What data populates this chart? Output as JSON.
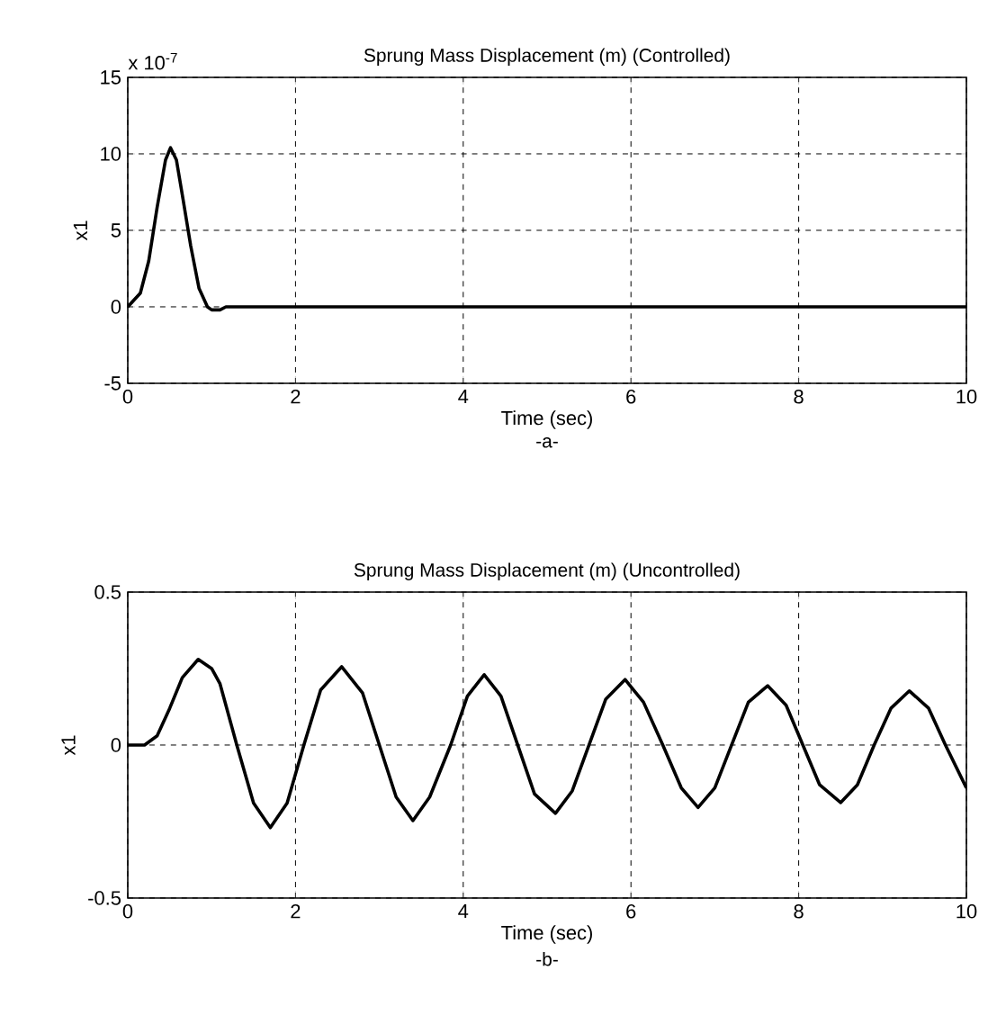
{
  "chart_data": [
    {
      "type": "line",
      "title": "Sprung Mass Displacement (m) (Controlled)",
      "xlabel": "Time (sec)",
      "ylabel": "x1",
      "annotations": [
        "x 10$^{-7}$",
        "-a-"
      ],
      "x": [
        0,
        0.15,
        0.25,
        0.35,
        0.45,
        0.51,
        0.58,
        0.66,
        0.75,
        0.85,
        0.95,
        1.0,
        1.1,
        1.17,
        10
      ],
      "series": [
        {
          "color": "#000000",
          "values": [
            0,
            0.9,
            3,
            6.5,
            9.6,
            10.4,
            9.6,
            7,
            4,
            1.2,
            0,
            -0.2,
            -0.2,
            0,
            0
          ]
        }
      ],
      "xlim": [
        0,
        10
      ],
      "ylim": [
        -5,
        15
      ],
      "xticks": [
        0,
        2,
        4,
        6,
        8,
        10
      ],
      "yticks": [
        -5,
        0,
        5,
        10,
        15
      ],
      "grid": true,
      "marker": "none",
      "line_style": "solid"
    },
    {
      "type": "line",
      "title": "Sprung Mass Displacement (m) (Uncontrolled)",
      "xlabel": "Time (sec)",
      "ylabel": "x1",
      "annotations": [
        "-b-"
      ],
      "x": [
        0,
        0.2,
        0.35,
        0.5,
        0.65,
        0.84,
        1.0,
        1.1,
        1.3,
        1.5,
        1.7,
        1.9,
        2.1,
        2.3,
        2.55,
        2.8,
        3.0,
        3.2,
        3.4,
        3.6,
        3.85,
        4.05,
        4.25,
        4.45,
        4.65,
        4.85,
        5.1,
        5.3,
        5.5,
        5.7,
        5.93,
        6.15,
        6.38,
        6.6,
        6.8,
        7.0,
        7.2,
        7.4,
        7.63,
        7.85,
        8.05,
        8.25,
        8.5,
        8.7,
        8.9,
        9.1,
        9.32,
        9.55,
        9.75,
        10
      ],
      "series": [
        {
          "color": "#000000",
          "values": [
            0,
            0,
            0.03,
            0.12,
            0.22,
            0.28,
            0.25,
            0.2,
            0,
            -0.19,
            -0.27,
            -0.19,
            0,
            0.18,
            0.256,
            0.17,
            0,
            -0.17,
            -0.247,
            -0.17,
            0,
            0.16,
            0.23,
            0.16,
            0,
            -0.16,
            -0.223,
            -0.15,
            0,
            0.15,
            0.214,
            0.14,
            0,
            -0.14,
            -0.204,
            -0.14,
            0,
            0.14,
            0.194,
            0.13,
            0,
            -0.13,
            -0.188,
            -0.13,
            0,
            0.12,
            0.177,
            0.12,
            0,
            -0.14
          ]
        }
      ],
      "xlim": [
        0,
        10
      ],
      "ylim": [
        -0.5,
        0.5
      ],
      "xticks": [
        0,
        2,
        4,
        6,
        8,
        10
      ],
      "yticks": [
        -0.5,
        0,
        0.5
      ],
      "grid": true,
      "marker": "none",
      "line_style": "solid"
    }
  ]
}
